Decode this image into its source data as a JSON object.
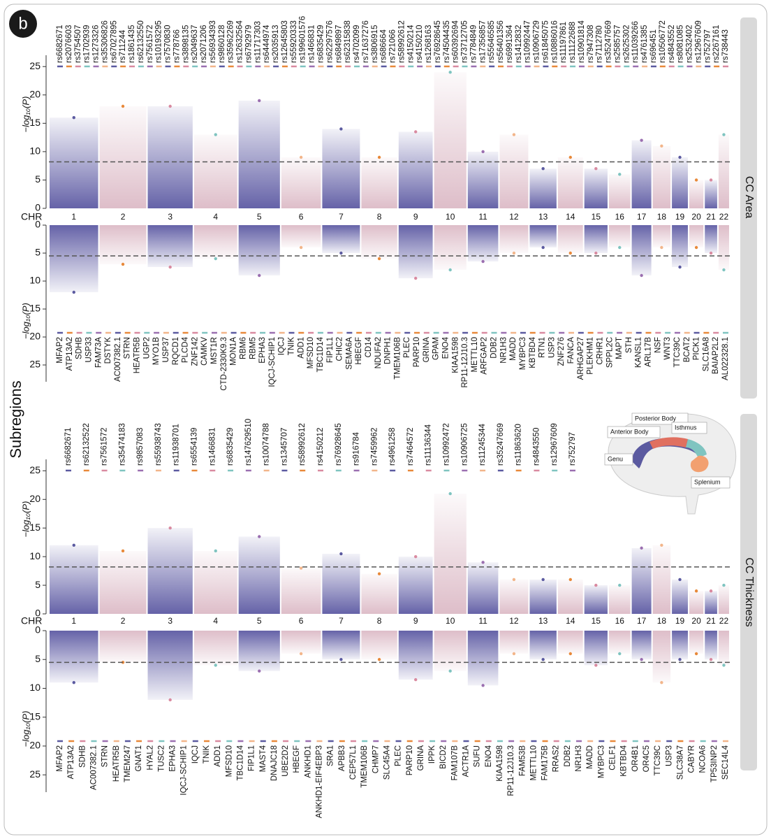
{
  "panel_label": "b",
  "y_axis_title": "Subregions",
  "inset": {
    "labels": [
      "Posterior Body",
      "Anterior Body",
      "Isthmus",
      "Genu",
      "Splenium"
    ]
  },
  "chart_data": [
    {
      "type": "miami",
      "facet": "CC Area",
      "chr_label": "CHR",
      "chromosomes": [
        1,
        2,
        3,
        4,
        5,
        6,
        7,
        8,
        9,
        10,
        11,
        12,
        13,
        14,
        15,
        16,
        17,
        18,
        19,
        20,
        21,
        22
      ],
      "colors": [
        "#5d5aa3",
        "#dcbac6"
      ],
      "label_colors": [
        "#5b5aa0",
        "#e8893a",
        "#d98aa0",
        "#7fc4c0",
        "#9b6fb0",
        "#f2b58a"
      ],
      "top": {
        "y_label": "−log₁₀(P)",
        "ylim": [
          0,
          27
        ],
        "yticks": [
          0,
          5,
          10,
          15,
          20,
          25
        ],
        "threshold": 8.2,
        "peaks": [
          16,
          18,
          18,
          13,
          19,
          9,
          14,
          9,
          13.5,
          24,
          10,
          13,
          7,
          9,
          7,
          6,
          12,
          11,
          9,
          5,
          5,
          13
        ],
        "snps": [
          "rs6682671",
          "rs2076603",
          "rs3754507",
          "rs1702939",
          "rs1273326",
          "rs35306826",
          "rs67027895",
          "rs711244",
          "rs1861435",
          "rs62132550",
          "rs7561572",
          "rs10193295",
          "rs7570830",
          "rs778766",
          "rs3898135",
          "rs2049637",
          "rs2071206",
          "rs56934393",
          "rs9860128",
          "rs35962269",
          "rs12632564",
          "rs6792979",
          "rs11717303",
          "rs6444974",
          "rs2035913",
          "rs12645803",
          "rs55920333",
          "rs199601576",
          "rs1466831",
          "rs6835429",
          "rs62297576",
          "rs6849897",
          "rs62315838",
          "rs4702099",
          "rs71637276",
          "rs3806915",
          "rs686664",
          "rs721066",
          "rs58992612",
          "rs4150214",
          "rs4150210",
          "rs1268163",
          "rs76928645",
          "rs74504435",
          "rs60392694",
          "rs73712705",
          "rs7784849",
          "rs17356857",
          "rs55646585",
          "rs56401356",
          "rs6991364",
          "rs1412832",
          "rs10992447",
          "rs10906729",
          "rs61845075",
          "rs10886016",
          "rs11197861",
          "rs11122688",
          "rs10901814",
          "rs7947308",
          "rs7112780",
          "rs35247669",
          "rs2585757",
          "rs2625302",
          "rs11039266",
          "rs4761385",
          "rs696451",
          "rs10506772",
          "rs4843552",
          "rs8081085",
          "rs2532402",
          "rs12967609",
          "rs752797",
          "rs2267161",
          "rs738443"
        ]
      },
      "bottom": {
        "y_label": "−log₁₀(P)",
        "ylim": [
          0,
          28
        ],
        "yticks": [
          0,
          5,
          10,
          15,
          20,
          25
        ],
        "threshold": 5.5,
        "peaks": [
          12,
          7,
          7.5,
          6,
          9,
          4,
          5,
          6,
          9.5,
          8,
          6.5,
          5,
          4,
          5,
          5,
          4,
          9,
          4,
          7.5,
          4,
          5,
          8
        ],
        "genes": [
          "MFAP2",
          "ATP13A2",
          "SDHB",
          "USP33",
          "FAM73A",
          "DSTYK",
          "AC007382.1",
          "STRN",
          "HEATR5B",
          "UGP2",
          "MYO1B",
          "USP37",
          "RQCD1",
          "PLCD4",
          "ZNF142",
          "CAMKV",
          "MST1R",
          "CTD-2330K9.3",
          "MON1A",
          "RBM6",
          "RBM5",
          "EPHA3",
          "IQCJ-SCHIP1",
          "IQCJ",
          "TNIK",
          "ADD1",
          "MFSD10",
          "TBC1D14",
          "FIP1L1",
          "CHIC2",
          "SEMA6A",
          "HBEGF",
          "CD14",
          "NDUFA2",
          "DNPH1",
          "TMEM106B",
          "PLEC",
          "PARP10",
          "GRINA",
          "GPAM",
          "ENO4",
          "KIAA1598",
          "RP11-12J10.3",
          "METTL10",
          "ARFGAP2",
          "DDB2",
          "NR1H3",
          "MADD",
          "MYBPC3",
          "KBTBD4",
          "RTN1",
          "USP3",
          "ZNF276",
          "FANCA",
          "ARHGAP27",
          "PLEKHM1",
          "CRHR1",
          "SPPL2C",
          "MAPT",
          "STH",
          "KANSL1",
          "ARL17B",
          "NSF",
          "WNT3",
          "TTC39C",
          "BCAT2",
          "PICK1",
          "SLC16A8",
          "BAIAP2L2",
          "AL022328.1"
        ]
      }
    },
    {
      "type": "miami",
      "facet": "CC Thickness",
      "chr_label": "CHR",
      "chromosomes": [
        1,
        2,
        3,
        4,
        5,
        6,
        7,
        8,
        9,
        10,
        11,
        12,
        13,
        14,
        15,
        16,
        17,
        18,
        19,
        20,
        21,
        22
      ],
      "colors": [
        "#5d5aa3",
        "#dcbac6"
      ],
      "label_colors": [
        "#5b5aa0",
        "#e8893a",
        "#d98aa0",
        "#7fc4c0",
        "#9b6fb0",
        "#f2b58a"
      ],
      "top": {
        "y_label": "−log₁₀(P)",
        "ylim": [
          0,
          27
        ],
        "yticks": [
          0,
          5,
          10,
          15,
          20,
          25
        ],
        "threshold": 8.2,
        "peaks": [
          12,
          11,
          15,
          11,
          13.5,
          8,
          10.5,
          7,
          10,
          21,
          9,
          6,
          6,
          6,
          5,
          5,
          11.5,
          12,
          6,
          4,
          4,
          5
        ],
        "snps": [
          "rs6682671",
          "rs62132522",
          "rs7561572",
          "rs35474183",
          "rs9857083",
          "rs55938743",
          "rs11938701",
          "rs6554139",
          "rs1466831",
          "rs6835429",
          "rs147629510",
          "rs10074788",
          "rs1345707",
          "rs58992612",
          "rs4150212",
          "rs76928645",
          "rs916784",
          "rs7459962",
          "rs4961258",
          "rs7464572",
          "rs11136344",
          "rs10992472",
          "rs10906725",
          "rs11245344",
          "rs35247669",
          "rs11863620",
          "rs4843550",
          "rs12967609",
          "rs752797"
        ]
      },
      "bottom": {
        "y_label": "−log₁₀(P)",
        "ylim": [
          0,
          28
        ],
        "yticks": [
          0,
          5,
          10,
          15,
          20,
          25
        ],
        "threshold": 5.5,
        "peaks": [
          9,
          5.5,
          12,
          6,
          7,
          4,
          5,
          5,
          8.5,
          7,
          9.5,
          4,
          5,
          4,
          6,
          4,
          5,
          9,
          5,
          4,
          5,
          6
        ],
        "genes": [
          "MFAP2",
          "ATP13A2",
          "SDHB",
          "AC007382.1",
          "STRN",
          "HEATR5B",
          "TMEM247",
          "GNAT1",
          "HYAL2",
          "TUSC2",
          "EPHA3",
          "IQCJ-SCHIP1",
          "IQCJ",
          "TNIK",
          "ADD1",
          "MFSD10",
          "TBC1D14",
          "FIP1L1",
          "MAST4",
          "DNAJC18",
          "UBE2D2",
          "HBEGF",
          "ANKHD1",
          "ANKHD1-EIF4EBP3",
          "SRA1",
          "APBB3",
          "CEP57L1",
          "TMEM106B",
          "CHMP7",
          "SLC45A4",
          "PLEC",
          "PARP10",
          "GRINA",
          "IPPK",
          "BICD2",
          "FAM107B",
          "ACTR1A",
          "SUFU",
          "ENO4",
          "KIAA1598",
          "RP11-12J10.3",
          "FAM53B",
          "METTL10",
          "FAM175B",
          "RRAS2",
          "DDB2",
          "NR1H3",
          "MADD",
          "MYBPC3",
          "CELF1",
          "KBTBD4",
          "OR4B1",
          "OR4C5",
          "TTC39C",
          "USP3",
          "SLC38A7",
          "CABYR",
          "NCOA6",
          "TP53INP2",
          "SEC14L4"
        ]
      }
    }
  ]
}
